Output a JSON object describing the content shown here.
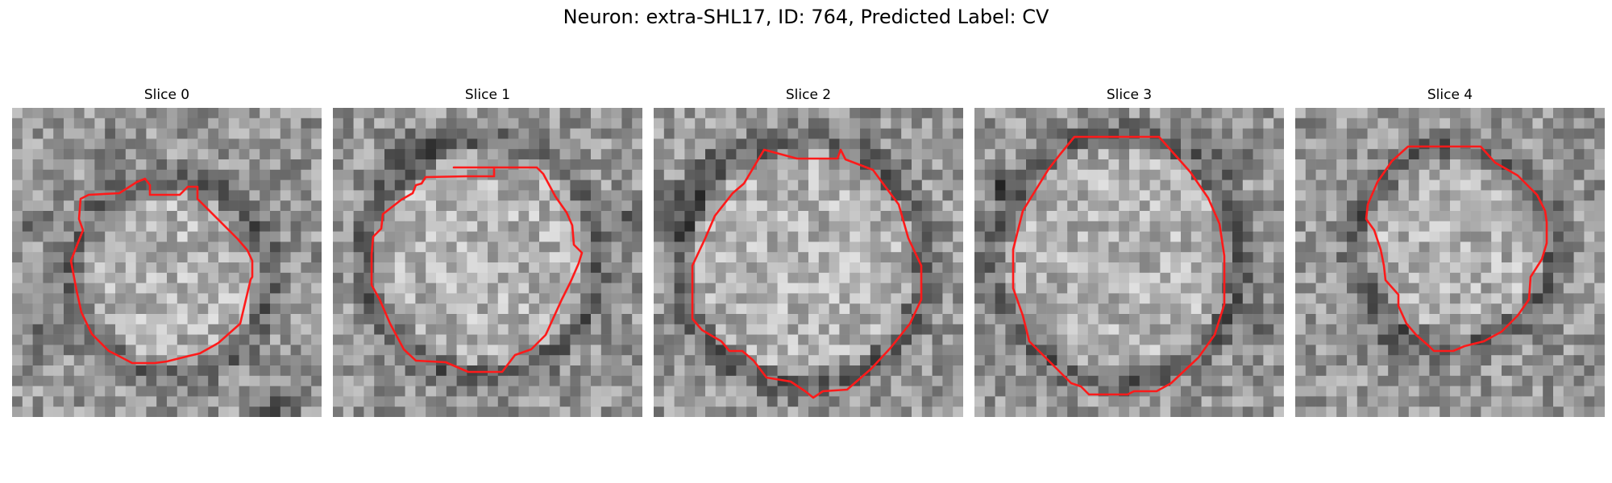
{
  "figure": {
    "title": "Neuron: extra-SHL17, ID: 764, Predicted Label: CV",
    "contour_color": "#ff1a1a"
  },
  "panels": [
    {
      "title": "Slice 0"
    },
    {
      "title": "Slice 1"
    },
    {
      "title": "Slice 2"
    },
    {
      "title": "Slice 3"
    },
    {
      "title": "Slice 4"
    }
  ]
}
